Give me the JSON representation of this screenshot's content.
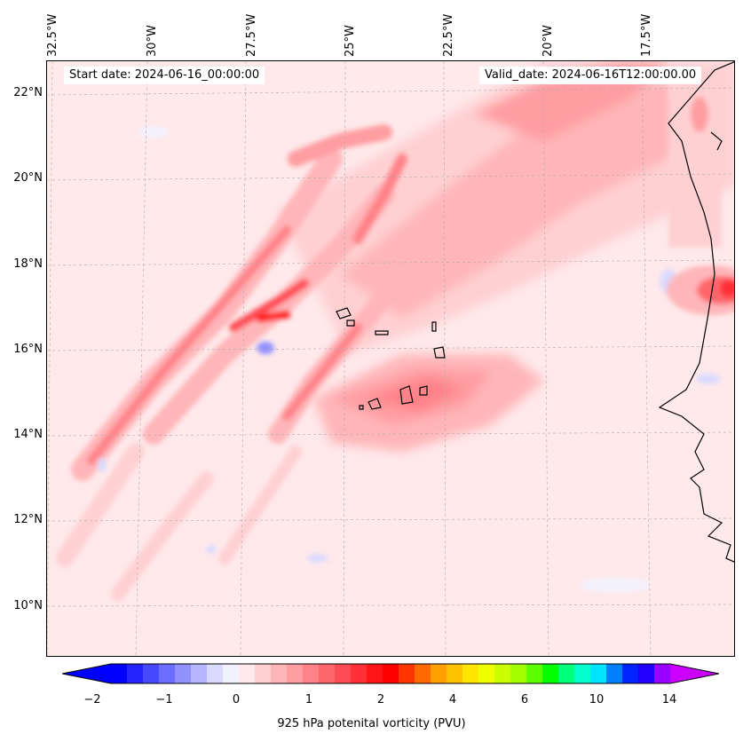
{
  "map": {
    "title_start": "Start date: 2024-06-16_00:00:00",
    "title_valid": "Valid_date: 2024-06-16T12:00:00.00",
    "lon_labels": [
      "32.5°W",
      "30°W",
      "27.5°W",
      "25°W",
      "22.5°W",
      "20°W",
      "17.5°W"
    ],
    "lat_labels": [
      "22°N",
      "20°N",
      "18°N",
      "16°N",
      "14°N",
      "12°N",
      "10°N"
    ],
    "field": "925 hPa potenital vorticity (PVU)",
    "colorbar": {
      "tick_labels": [
        "−2",
        "−1",
        "0",
        "1",
        "2",
        "4",
        "6",
        "10",
        "14"
      ],
      "colors": [
        "#0000ff",
        "#2424ff",
        "#4848ff",
        "#6d6dff",
        "#9191ff",
        "#b6b6ff",
        "#dadaff",
        "#f2f2ff",
        "#ffe9ea",
        "#ffd0d2",
        "#ffb6b9",
        "#ff9da1",
        "#ff8288",
        "#ff666c",
        "#ff4b52",
        "#ff2f35",
        "#ff1418",
        "#ff0000",
        "#ff3500",
        "#ff6a00",
        "#ff9f00",
        "#ffc200",
        "#ffe500",
        "#eeff00",
        "#c9ff00",
        "#a3ff00",
        "#5cff00",
        "#00ff00",
        "#00ff7a",
        "#00ffcc",
        "#00e5ff",
        "#0080ff",
        "#0024ff",
        "#2200ff",
        "#9900ff"
      ],
      "under_color": "#0000ff",
      "over_color": "#cc00ff"
    }
  }
}
